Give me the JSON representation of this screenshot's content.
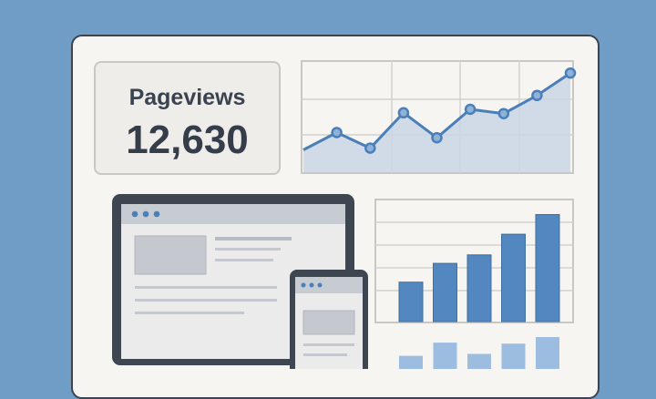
{
  "stat_card": {
    "label": "Pageviews",
    "value": "12,630"
  },
  "colors": {
    "background": "#6f9dc6",
    "panel": "#f7f5f1",
    "accent": "#4b7fb8",
    "bar_dark": "#5287bf",
    "bar_light": "#9cbde0",
    "frame": "#3b4450"
  },
  "chart_data": [
    {
      "type": "area",
      "x": [
        1,
        2,
        3,
        4,
        5,
        6,
        7,
        8,
        9
      ],
      "values": [
        27,
        47,
        29,
        70,
        41,
        74,
        69,
        90,
        116
      ],
      "ylim": [
        0,
        130
      ],
      "grid": true,
      "title": "",
      "xlabel": "",
      "ylabel": ""
    },
    {
      "type": "bar",
      "values": [
        42,
        62,
        71,
        93,
        114
      ],
      "ylim": [
        0,
        130
      ],
      "grid": true,
      "title": "",
      "xlabel": "",
      "ylabel": ""
    },
    {
      "type": "bar",
      "values": [
        14,
        28,
        16,
        27,
        34
      ],
      "ylim": [
        0,
        130
      ],
      "grid": false,
      "title": "",
      "xlabel": "",
      "ylabel": ""
    }
  ],
  "icons": [
    "window-dot-icon",
    "browser-window-icon",
    "mobile-phone-icon",
    "desktop-monitor-icon"
  ]
}
